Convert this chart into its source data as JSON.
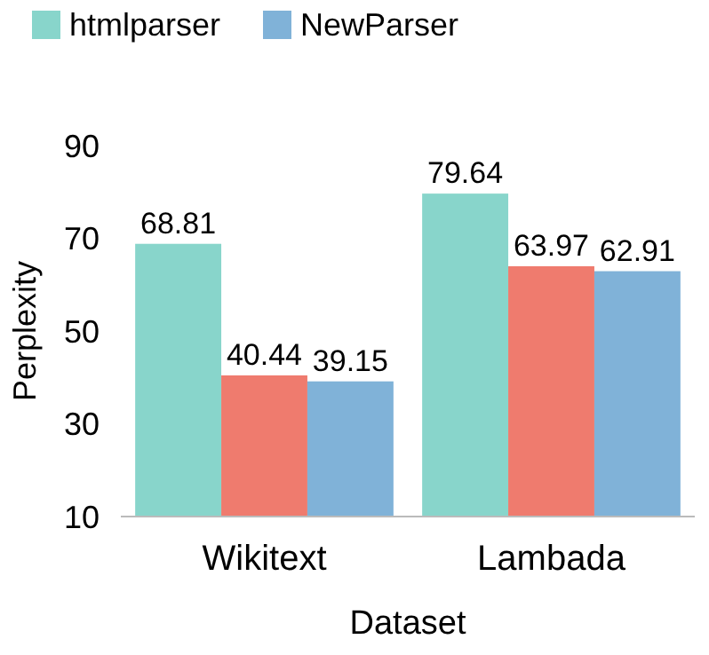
{
  "chart_data": {
    "type": "bar",
    "xlabel": "Dataset",
    "ylabel": "Perplexity",
    "categories": [
      "Wikitext",
      "Lambada"
    ],
    "series": [
      {
        "name": "htmlparser",
        "color": "#88d5cb",
        "values": [
          68.81,
          79.64
        ]
      },
      {
        "color": "#ef7b6e",
        "values": [
          40.44,
          63.97
        ]
      },
      {
        "name": "NewParser",
        "color": "#80b2d8",
        "values": [
          39.15,
          62.91
        ]
      }
    ],
    "ylim": [
      10,
      90
    ],
    "yticks": [
      10,
      30,
      50,
      70,
      90
    ],
    "data_labels": true,
    "legend": "top",
    "grid": false
  }
}
